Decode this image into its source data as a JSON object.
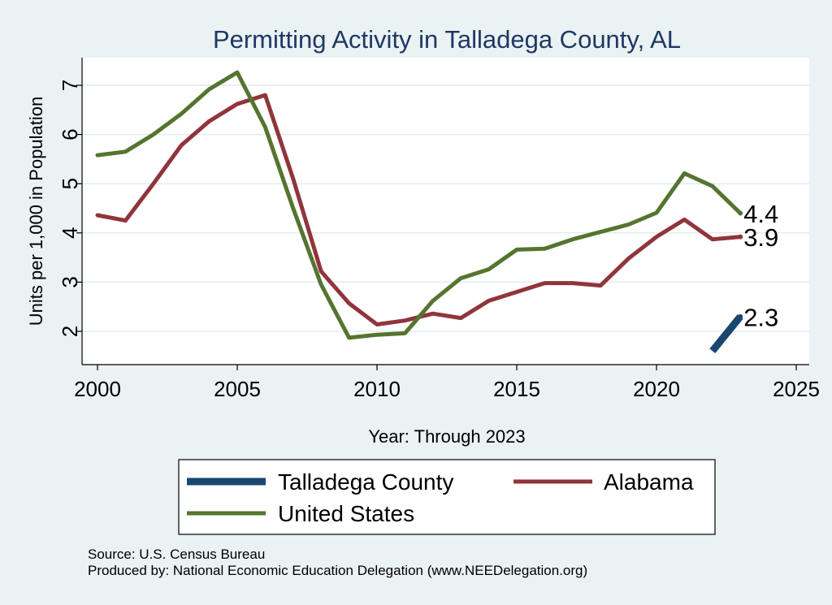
{
  "chart_data": {
    "type": "line",
    "title": "Permitting Activity in Talladega County, AL",
    "xlabel": "Year: Through 2023",
    "ylabel": "Units per 1,000 in Population",
    "xlim": [
      2000,
      2025
    ],
    "ylim": [
      1.5,
      7.5
    ],
    "xticks": [
      "2000",
      "2005",
      "2010",
      "2015",
      "2020",
      "2025"
    ],
    "yticks": [
      "2",
      "3",
      "4",
      "5",
      "6",
      "7"
    ],
    "grid": true,
    "legend_position": "bottom",
    "series": [
      {
        "name": "Talladega County",
        "color": "#1a476f",
        "x": [
          2022,
          2023
        ],
        "values": [
          1.6,
          2.3
        ],
        "end_label": "2.3"
      },
      {
        "name": "Alabama",
        "color": "#90353b",
        "x": [
          2000,
          2001,
          2002,
          2003,
          2004,
          2005,
          2006,
          2007,
          2008,
          2009,
          2010,
          2011,
          2012,
          2013,
          2014,
          2015,
          2016,
          2017,
          2018,
          2019,
          2020,
          2021,
          2022,
          2023
        ],
        "values": [
          4.36,
          4.25,
          5.0,
          5.78,
          6.27,
          6.62,
          6.8,
          5.1,
          3.22,
          2.57,
          2.14,
          2.22,
          2.36,
          2.27,
          2.62,
          2.8,
          2.98,
          2.98,
          2.93,
          3.48,
          3.92,
          4.27,
          3.87,
          3.92
        ],
        "end_label": "3.9"
      },
      {
        "name": "United States",
        "color": "#55752f",
        "x": [
          2000,
          2001,
          2002,
          2003,
          2004,
          2005,
          2006,
          2007,
          2008,
          2009,
          2010,
          2011,
          2012,
          2013,
          2014,
          2015,
          2016,
          2017,
          2018,
          2019,
          2020,
          2021,
          2022,
          2023
        ],
        "values": [
          5.58,
          5.65,
          6.0,
          6.42,
          6.92,
          7.26,
          6.15,
          4.5,
          2.95,
          1.87,
          1.93,
          1.96,
          2.62,
          3.08,
          3.26,
          3.66,
          3.68,
          3.87,
          4.02,
          4.17,
          4.41,
          5.21,
          4.95,
          4.4
        ],
        "end_label": "4.4"
      }
    ],
    "notes": [
      "Source: U.S. Census Bureau",
      "Produced by: National Economic Education Delegation (www.NEEDelegation.org)"
    ]
  }
}
